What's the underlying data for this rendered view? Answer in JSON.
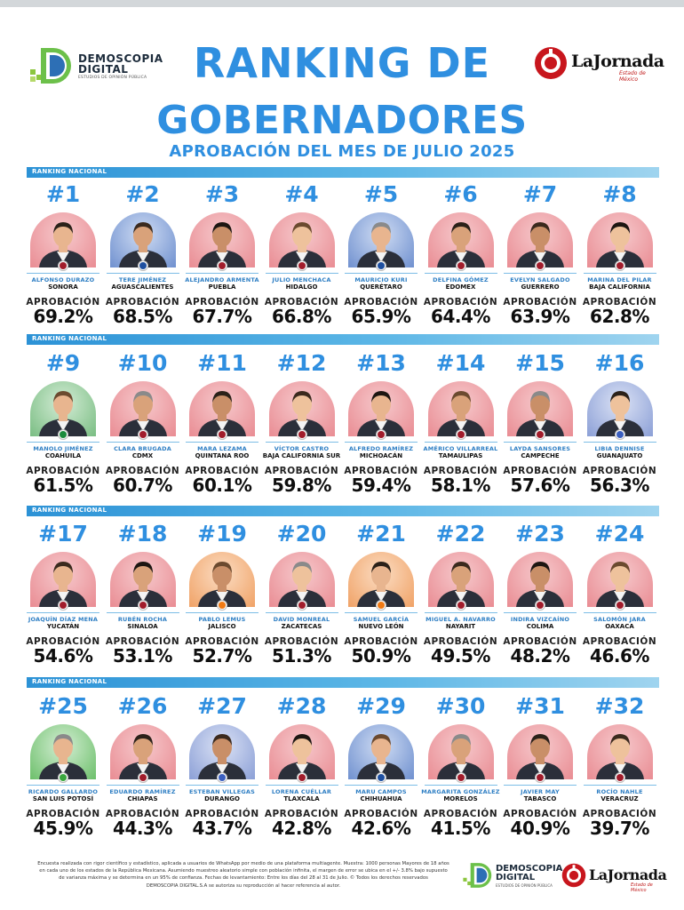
{
  "header": {
    "title_line1": "RANKING DE",
    "title_line2": "GOBERNADORES",
    "subtitle": "APROBACIÓN DEL MES DE JULIO 2025",
    "brand_left": {
      "line1": "DEMOSCOPIA",
      "line2": "DIGITAL",
      "tagline": "ESTUDIOS DE OPINIÓN PÚBLICA"
    },
    "brand_right": {
      "name": "LaJornada",
      "sub": "Estado de México"
    }
  },
  "band_label": "RANKING NACIONAL",
  "approval_label": "APROBACIÓN",
  "party_colors": {
    "MORENA": "#a11c2b",
    "PAN": "#1e4fa0",
    "PRI": "#1b8a3c",
    "MC": "#f07a14",
    "PVEM": "#3aa63e",
    "COALICION": "#3b5fbf"
  },
  "governors": [
    {
      "rank": "#1",
      "name": "ALFONSO DURAZO",
      "state": "SONORA",
      "approval": "69.2%",
      "party": "MORENA"
    },
    {
      "rank": "#2",
      "name": "TERE JIMÉNEZ",
      "state": "AGUASCALIENTES",
      "approval": "68.5%",
      "party": "PAN"
    },
    {
      "rank": "#3",
      "name": "ALEJANDRO ARMENTA",
      "state": "PUEBLA",
      "approval": "67.7%",
      "party": "MORENA"
    },
    {
      "rank": "#4",
      "name": "JULIO MENCHACA",
      "state": "HIDALGO",
      "approval": "66.8%",
      "party": "MORENA"
    },
    {
      "rank": "#5",
      "name": "MAURICIO KURI",
      "state": "QUERÉTARO",
      "approval": "65.9%",
      "party": "PAN"
    },
    {
      "rank": "#6",
      "name": "DELFINA GÓMEZ",
      "state": "EDOMEX",
      "approval": "64.4%",
      "party": "MORENA"
    },
    {
      "rank": "#7",
      "name": "EVELYN SALGADO",
      "state": "GUERRERO",
      "approval": "63.9%",
      "party": "MORENA"
    },
    {
      "rank": "#8",
      "name": "MARINA DEL PILAR",
      "state": "BAJA CALIFORNIA",
      "approval": "62.8%",
      "party": "MORENA"
    },
    {
      "rank": "#9",
      "name": "MANOLO JIMÉNEZ",
      "state": "COAHUILA",
      "approval": "61.5%",
      "party": "PRI"
    },
    {
      "rank": "#10",
      "name": "CLARA BRUGADA",
      "state": "CDMX",
      "approval": "60.7%",
      "party": "MORENA"
    },
    {
      "rank": "#11",
      "name": "MARA LEZAMA",
      "state": "QUINTANA ROO",
      "approval": "60.1%",
      "party": "MORENA"
    },
    {
      "rank": "#12",
      "name": "VÍCTOR CASTRO",
      "state": "BAJA CALIFORNIA SUR",
      "approval": "59.8%",
      "party": "MORENA"
    },
    {
      "rank": "#13",
      "name": "ALFREDO RAMÍREZ",
      "state": "MICHOACÁN",
      "approval": "59.4%",
      "party": "MORENA"
    },
    {
      "rank": "#14",
      "name": "AMÉRICO VILLARREAL",
      "state": "TAMAULIPAS",
      "approval": "58.1%",
      "party": "MORENA"
    },
    {
      "rank": "#15",
      "name": "LAYDA SANSORES",
      "state": "CAMPECHE",
      "approval": "57.6%",
      "party": "MORENA"
    },
    {
      "rank": "#16",
      "name": "LIBIA DENNISE",
      "state": "GUANAJUATO",
      "approval": "56.3%",
      "party": "COALICION"
    },
    {
      "rank": "#17",
      "name": "JOAQUÍN DÍAZ MENA",
      "state": "YUCATÁN",
      "approval": "54.6%",
      "party": "MORENA"
    },
    {
      "rank": "#18",
      "name": "RUBÉN ROCHA",
      "state": "SINALOA",
      "approval": "53.1%",
      "party": "MORENA"
    },
    {
      "rank": "#19",
      "name": "PABLO LEMUS",
      "state": "JALISCO",
      "approval": "52.7%",
      "party": "MC"
    },
    {
      "rank": "#20",
      "name": "DAVID MONREAL",
      "state": "ZACATECAS",
      "approval": "51.3%",
      "party": "MORENA"
    },
    {
      "rank": "#21",
      "name": "SAMUEL GARCÍA",
      "state": "NUEVO LEÓN",
      "approval": "50.9%",
      "party": "MC"
    },
    {
      "rank": "#22",
      "name": "MIGUEL A. NAVARRO",
      "state": "NAYARIT",
      "approval": "49.5%",
      "party": "MORENA"
    },
    {
      "rank": "#23",
      "name": "INDIRA VIZCAÍNO",
      "state": "COLIMA",
      "approval": "48.2%",
      "party": "MORENA"
    },
    {
      "rank": "#24",
      "name": "SALOMÓN JARA",
      "state": "OAXACA",
      "approval": "46.6%",
      "party": "MORENA"
    },
    {
      "rank": "#25",
      "name": "RICARDO GALLARDO",
      "state": "SAN LUIS POTOSÍ",
      "approval": "45.9%",
      "party": "PVEM"
    },
    {
      "rank": "#26",
      "name": "EDUARDO RAMÍREZ",
      "state": "CHIAPAS",
      "approval": "44.3%",
      "party": "MORENA"
    },
    {
      "rank": "#27",
      "name": "ESTEBAN VILLEGAS",
      "state": "DURANGO",
      "approval": "43.7%",
      "party": "COALICION"
    },
    {
      "rank": "#28",
      "name": "LORENA CUÉLLAR",
      "state": "TLAXCALA",
      "approval": "42.8%",
      "party": "MORENA"
    },
    {
      "rank": "#29",
      "name": "MARU CAMPOS",
      "state": "CHIHUAHUA",
      "approval": "42.6%",
      "party": "PAN"
    },
    {
      "rank": "#30",
      "name": "MARGARITA GONZÁLEZ",
      "state": "MORELOS",
      "approval": "41.5%",
      "party": "MORENA"
    },
    {
      "rank": "#31",
      "name": "JAVIER MAY",
      "state": "TABASCO",
      "approval": "40.9%",
      "party": "MORENA"
    },
    {
      "rank": "#32",
      "name": "ROCÍO NAHLE",
      "state": "VERACRUZ",
      "approval": "39.7%",
      "party": "MORENA"
    }
  ],
  "footer": {
    "note_line1": "Encuesta realizada con rigor científico y estadístico, aplicada a usuarios de WhatsApp por medio de una plataforma multiagente. Muestra: 1000 personas Mayores de 18 años",
    "note_line2": "en cada uno de los estados de la República Mexicana. Asumiendo muestreo aleatorio simple con población infinita, el margen de error se ubica en el +/- 3.8% bajo supuesto",
    "note_line3": "de varianza máxima y se determina en un 95% de confianza. Fechas de levantamiento: Entre los días del 28 al 31 de Julio. © Todos los derechos reservados",
    "note_line4": "DEMOSCOPIA DIGITAL.S.A se autoriza su reproducción al hacer referencia al autor."
  }
}
